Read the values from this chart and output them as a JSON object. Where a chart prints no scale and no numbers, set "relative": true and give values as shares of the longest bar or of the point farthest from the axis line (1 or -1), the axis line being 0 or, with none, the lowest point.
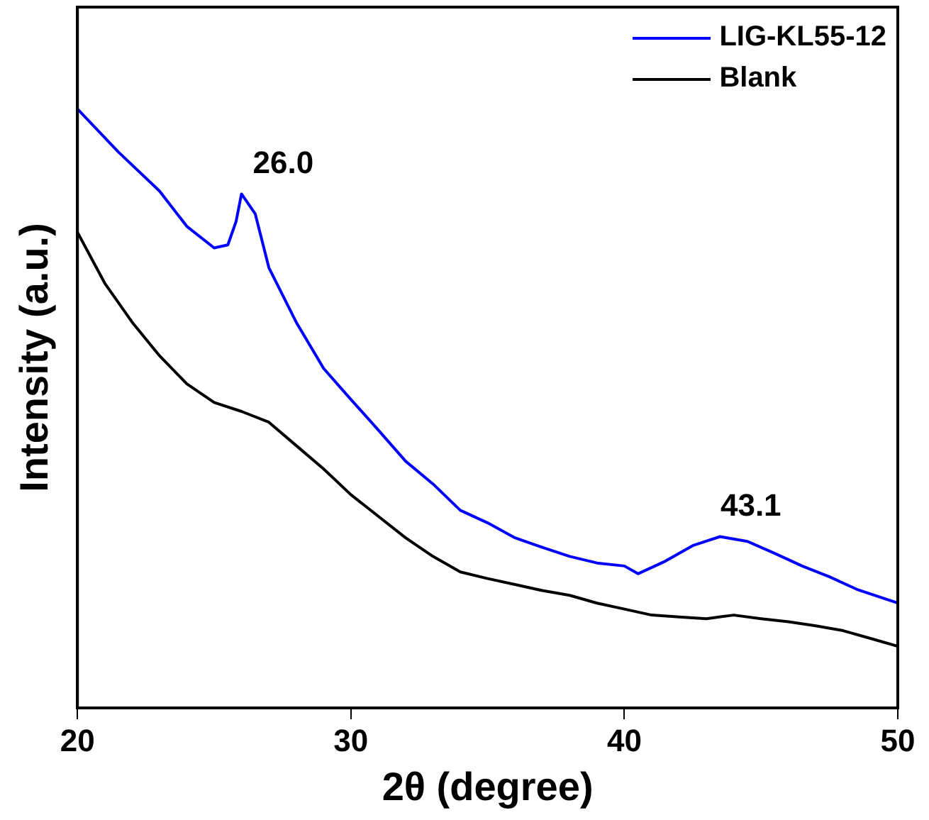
{
  "chart_data": {
    "type": "line",
    "relative": true,
    "xlabel": "2θ (degree)",
    "ylabel": "Intensity (a.u.)",
    "xlim": [
      20,
      50
    ],
    "xticks": [
      20,
      30,
      40,
      50
    ],
    "legend": "top right",
    "grid": false,
    "marker": "none",
    "line_style": "solid",
    "series": [
      {
        "name": "LIG-KL55-12",
        "color": "#0000ff",
        "x": [
          20,
          21.5,
          23,
          24,
          25,
          25.5,
          25.8,
          26.0,
          26.5,
          27,
          28,
          29,
          30,
          31,
          32,
          33,
          34,
          35,
          36,
          37,
          38,
          39,
          40,
          40.5,
          41.5,
          42.5,
          43.5,
          44.5,
          45.5,
          46.5,
          47.5,
          48.5,
          50
        ],
        "values": [
          1.0,
          0.928,
          0.863,
          0.804,
          0.768,
          0.773,
          0.812,
          0.858,
          0.825,
          0.735,
          0.644,
          0.567,
          0.515,
          0.464,
          0.412,
          0.374,
          0.33,
          0.309,
          0.284,
          0.268,
          0.253,
          0.242,
          0.237,
          0.224,
          0.245,
          0.271,
          0.286,
          0.278,
          0.258,
          0.237,
          0.219,
          0.198,
          0.175
        ]
      },
      {
        "name": "Blank",
        "color": "#000000",
        "x": [
          20,
          21,
          22,
          23,
          24,
          25,
          26,
          27,
          28,
          29,
          30,
          31,
          32,
          33,
          34,
          35,
          36,
          37,
          38,
          39,
          40,
          41,
          42,
          43,
          44,
          45,
          46,
          47,
          48,
          49,
          50
        ],
        "values": [
          0.794,
          0.709,
          0.644,
          0.588,
          0.541,
          0.51,
          0.495,
          0.477,
          0.438,
          0.399,
          0.356,
          0.32,
          0.284,
          0.253,
          0.227,
          0.216,
          0.206,
          0.196,
          0.188,
          0.175,
          0.165,
          0.155,
          0.152,
          0.149,
          0.155,
          0.149,
          0.144,
          0.137,
          0.129,
          0.116,
          0.103
        ]
      }
    ],
    "annotations": [
      {
        "text": "26.0",
        "x": 26.0,
        "y": 0.858
      },
      {
        "text": "43.1",
        "x": 43.1,
        "y": 0.286
      }
    ]
  }
}
